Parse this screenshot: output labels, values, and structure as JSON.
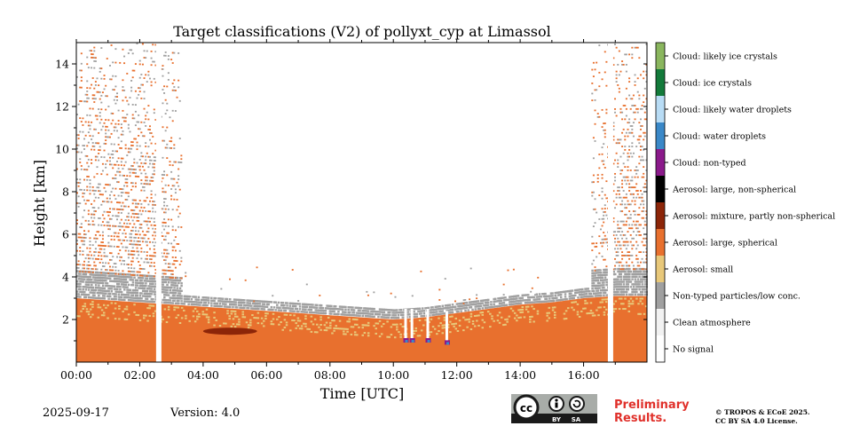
{
  "chart_data": {
    "type": "heatmap",
    "title": "Target classifications (V2) of pollyxt_cyp at Limassol",
    "xlabel": "Time [UTC]",
    "ylabel": "Height [km]",
    "xlim": [
      0,
      18
    ],
    "ylim": [
      0,
      15
    ],
    "x_ticks": [
      {
        "value": 0,
        "label": "00:00"
      },
      {
        "value": 2,
        "label": "02:00"
      },
      {
        "value": 4,
        "label": "04:00"
      },
      {
        "value": 6,
        "label": "06:00"
      },
      {
        "value": 8,
        "label": "08:00"
      },
      {
        "value": 10,
        "label": "10:00"
      },
      {
        "value": 12,
        "label": "12:00"
      },
      {
        "value": 14,
        "label": "14:00"
      },
      {
        "value": 16,
        "label": "16:00"
      }
    ],
    "y_ticks": [
      {
        "value": 2,
        "label": "2"
      },
      {
        "value": 4,
        "label": "4"
      },
      {
        "value": 6,
        "label": "6"
      },
      {
        "value": 8,
        "label": "8"
      },
      {
        "value": 10,
        "label": "10"
      },
      {
        "value": 12,
        "label": "12"
      },
      {
        "value": 14,
        "label": "14"
      }
    ],
    "classes": [
      {
        "label": "No signal",
        "color": "#ffffff"
      },
      {
        "label": "Clean atmosphere",
        "color": "#f2f2f2"
      },
      {
        "label": "Non-typed particles/low conc.",
        "color": "#a0a0a0"
      },
      {
        "label": "Aerosol: small",
        "color": "#e8c87a"
      },
      {
        "label": "Aerosol: large, spherical",
        "color": "#e8702e"
      },
      {
        "label": "Aerosol: mixture, partly non-spherical",
        "color": "#8c2508"
      },
      {
        "label": "Aerosol: large, non-spherical",
        "color": "#000000"
      },
      {
        "label": "Cloud: non-typed",
        "color": "#8b1a8b"
      },
      {
        "label": "Cloud: water droplets",
        "color": "#3a88c8"
      },
      {
        "label": "Cloud: likely water droplets",
        "color": "#b8dcf5"
      },
      {
        "label": "Cloud: ice crystals",
        "color": "#137a3a"
      },
      {
        "label": "Cloud: likely ice crystals",
        "color": "#8ab65e"
      }
    ],
    "aerosol_layer_top_km": [
      [
        0,
        3.0
      ],
      [
        1,
        2.9
      ],
      [
        2,
        2.8
      ],
      [
        3,
        2.7
      ],
      [
        4,
        2.6
      ],
      [
        5,
        2.5
      ],
      [
        6,
        2.4
      ],
      [
        7,
        2.3
      ],
      [
        8,
        2.2
      ],
      [
        9,
        2.1
      ],
      [
        10,
        2.0
      ],
      [
        11,
        2.1
      ],
      [
        12,
        2.3
      ],
      [
        13,
        2.5
      ],
      [
        14,
        2.7
      ],
      [
        15,
        2.8
      ],
      [
        16,
        3.0
      ],
      [
        17,
        3.1
      ],
      [
        18,
        3.1
      ]
    ],
    "mixed_aerosol_patch": {
      "time_start": 4.0,
      "time_end": 5.7,
      "height_km": 1.45
    },
    "no_signal_gaps_time": [
      2.6,
      16.85
    ],
    "cloud_events": [
      {
        "time": 10.4,
        "height_km": 1.0
      },
      {
        "time": 10.6,
        "height_km": 1.0
      },
      {
        "time": 11.1,
        "height_km": 1.0
      },
      {
        "time": 11.7,
        "height_km": 0.9
      }
    ]
  },
  "footer": {
    "date": "2025-09-17",
    "version": "Version: 4.0",
    "preliminary_line1": "Preliminary",
    "preliminary_line2": "Results.",
    "copyright_line1": "© TROPOS & ECoE 2025.",
    "copyright_line2": "CC BY SA 4.0 License.",
    "license_badge": {
      "cc": "cc",
      "by": "BY",
      "sa": "SA"
    }
  }
}
